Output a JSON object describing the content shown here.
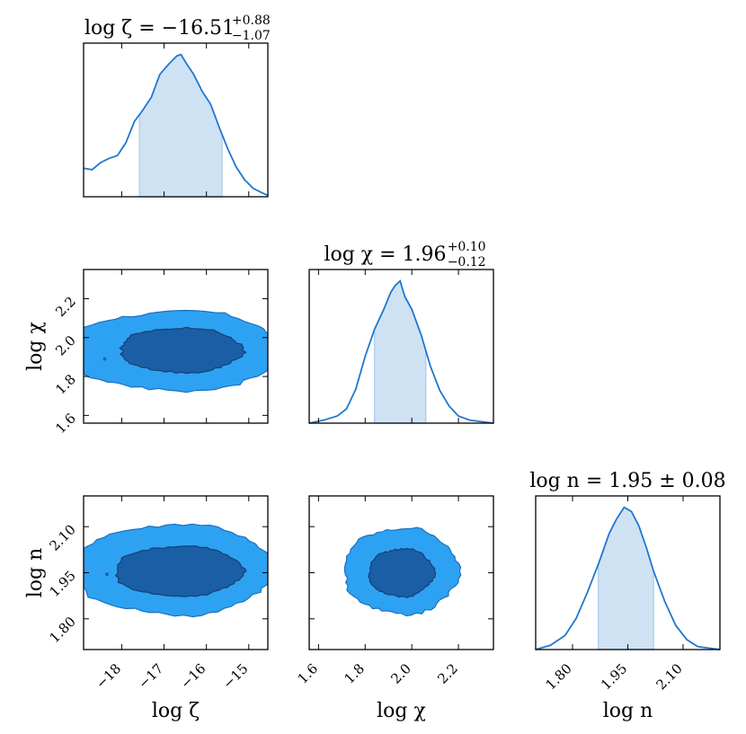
{
  "chart_data": {
    "type": "corner",
    "colors": {
      "line": "#1f77d0",
      "band": "#cfe2f3",
      "contour_outer": "#2ea2f2",
      "contour_inner": "#1a5fa6",
      "contour_edge": "#1a6fc0"
    },
    "parameters": [
      {
        "key": "zeta",
        "label": "log ζ",
        "title_main": "log ζ = −16.51",
        "title_sup": "+0.88",
        "title_sub": "−1.07",
        "range": [
          -18.9,
          -14.55
        ],
        "ticks": [
          -18,
          -17,
          -16,
          -15
        ],
        "tick_labels": [
          "−18",
          "−17",
          "−16",
          "−15"
        ],
        "band": [
          -17.58,
          -15.63
        ],
        "pdf_x": [
          -18.9,
          -18.7,
          -18.5,
          -18.3,
          -18.1,
          -17.9,
          -17.7,
          -17.5,
          -17.3,
          -17.1,
          -16.9,
          -16.7,
          -16.6,
          -16.5,
          -16.3,
          -16.1,
          -15.9,
          -15.7,
          -15.5,
          -15.3,
          -15.1,
          -14.9,
          -14.7,
          -14.55
        ],
        "pdf_y": [
          0.2,
          0.19,
          0.24,
          0.27,
          0.29,
          0.38,
          0.53,
          0.61,
          0.7,
          0.86,
          0.93,
          0.99,
          1.0,
          0.95,
          0.86,
          0.74,
          0.65,
          0.49,
          0.34,
          0.21,
          0.12,
          0.06,
          0.03,
          0.01
        ]
      },
      {
        "key": "chi",
        "label": "log χ",
        "title_main": "log χ = 1.96",
        "title_sup": "+0.10",
        "title_sub": "−0.12",
        "range": [
          1.56,
          2.35
        ],
        "ticks": [
          1.6,
          1.8,
          2.0,
          2.2
        ],
        "tick_labels": [
          "1.6",
          "1.8",
          "2.0",
          "2.2"
        ],
        "band": [
          1.84,
          2.06
        ],
        "pdf_x": [
          1.56,
          1.62,
          1.68,
          1.72,
          1.76,
          1.8,
          1.84,
          1.88,
          1.91,
          1.93,
          1.95,
          1.97,
          2.0,
          2.04,
          2.08,
          2.12,
          2.16,
          2.2,
          2.25,
          2.3,
          2.35
        ],
        "pdf_y": [
          0.0,
          0.02,
          0.05,
          0.1,
          0.24,
          0.47,
          0.66,
          0.8,
          0.92,
          0.97,
          1.0,
          0.89,
          0.8,
          0.62,
          0.4,
          0.23,
          0.12,
          0.05,
          0.02,
          0.01,
          0.0
        ]
      },
      {
        "key": "n",
        "label": "log n",
        "title_main": "log n = 1.95 ± 0.08",
        "title_sup": "",
        "title_sub": "",
        "range": [
          1.7,
          2.2
        ],
        "ticks": [
          1.8,
          1.95,
          2.1
        ],
        "tick_labels": [
          "1.80",
          "1.95",
          "2.10"
        ],
        "band": [
          1.87,
          2.02
        ],
        "pdf_x": [
          1.7,
          1.74,
          1.78,
          1.81,
          1.84,
          1.87,
          1.9,
          1.92,
          1.94,
          1.96,
          1.98,
          2.0,
          2.02,
          2.05,
          2.08,
          2.11,
          2.14,
          2.17,
          2.2
        ],
        "pdf_y": [
          0.0,
          0.03,
          0.1,
          0.22,
          0.4,
          0.6,
          0.82,
          0.92,
          1.0,
          0.97,
          0.87,
          0.72,
          0.55,
          0.34,
          0.17,
          0.07,
          0.02,
          0.01,
          0.0
        ]
      }
    ],
    "contours": [
      {
        "x": "zeta",
        "y": "chi",
        "outer": {
          "cx": -16.7,
          "cy": 1.93,
          "rx": 2.55,
          "ry": 0.205
        },
        "inner": {
          "cx": -16.6,
          "cy": 1.935,
          "rx": 1.45,
          "ry": 0.115
        },
        "dot": [
          -18.4,
          1.89
        ]
      },
      {
        "x": "zeta",
        "y": "n",
        "outer": {
          "cx": -16.75,
          "cy": 1.96,
          "rx": 2.35,
          "ry": 0.148
        },
        "inner": {
          "cx": -16.65,
          "cy": 1.955,
          "rx": 1.5,
          "ry": 0.082
        },
        "dot": [
          -18.35,
          1.945
        ]
      },
      {
        "x": "chi",
        "y": "n",
        "outer": {
          "cx": 1.955,
          "cy": 1.955,
          "rx": 0.245,
          "ry": 0.14
        },
        "inner": {
          "cx": 1.955,
          "cy": 1.95,
          "rx": 0.14,
          "ry": 0.078
        },
        "dot": null
      }
    ]
  }
}
